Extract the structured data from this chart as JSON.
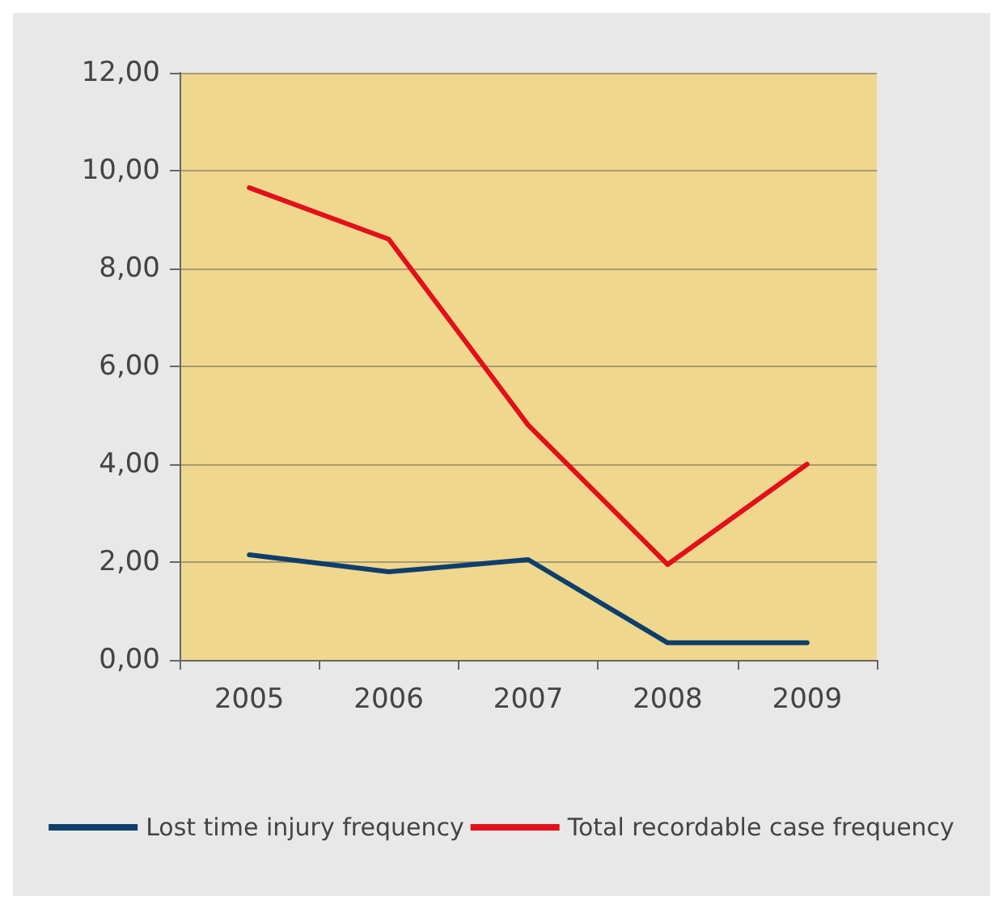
{
  "chart_data": {
    "type": "line",
    "categories": [
      "2005",
      "2006",
      "2007",
      "2008",
      "2009"
    ],
    "series": [
      {
        "name": "Lost time injury frequency",
        "color": "#0e3e6b",
        "values": [
          2.15,
          1.8,
          2.05,
          0.35,
          0.35
        ]
      },
      {
        "name": "Total recordable case frequency",
        "color": "#e2101a",
        "values": [
          9.65,
          8.6,
          4.8,
          1.95,
          4.0
        ]
      }
    ],
    "ylim": [
      0,
      12
    ],
    "yticks": [
      {
        "value": 0,
        "label": "0,00"
      },
      {
        "value": 2,
        "label": "2,00"
      },
      {
        "value": 4,
        "label": "4,00"
      },
      {
        "value": 6,
        "label": "6,00"
      },
      {
        "value": 8,
        "label": "8,00"
      },
      {
        "value": 10,
        "label": "10,00"
      },
      {
        "value": 12,
        "label": "12,00"
      }
    ],
    "grid": "y",
    "legend": "bottom",
    "marker": "none",
    "line_style": "solid"
  }
}
